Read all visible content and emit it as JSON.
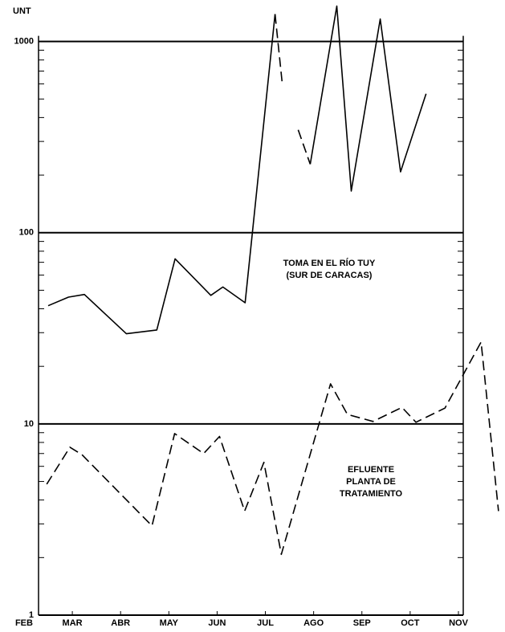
{
  "chart_data": {
    "type": "line",
    "y_label": "UNT",
    "log_scale": true,
    "grid": true,
    "xlim": [
      0.3,
      9.1
    ],
    "ylim": [
      1,
      1600
    ],
    "xticks": [
      {
        "value": 0,
        "label": "FEB"
      },
      {
        "value": 1,
        "label": "MAR"
      },
      {
        "value": 2,
        "label": "ABR"
      },
      {
        "value": 3,
        "label": "MAY"
      },
      {
        "value": 4,
        "label": "JUN"
      },
      {
        "value": 5,
        "label": "JUL"
      },
      {
        "value": 6,
        "label": "AGO"
      },
      {
        "value": 7,
        "label": "SEP"
      },
      {
        "value": 8,
        "label": "OCT"
      },
      {
        "value": 9,
        "label": "NOV"
      }
    ],
    "yticks": [
      1,
      10,
      100,
      1000
    ],
    "yminor": [
      2,
      3,
      4,
      5,
      6,
      7,
      8,
      9,
      20,
      30,
      40,
      50,
      60,
      70,
      80,
      90,
      200,
      300,
      400,
      500,
      600,
      700,
      800,
      900
    ],
    "annotations": [
      {
        "lines": [
          "TOMA EN EL RÍO TUY",
          "(SUR DE CARACAS)"
        ]
      },
      {
        "lines": [
          "EFLUENTE",
          "PLANTA DE",
          "TRATAMIENTO"
        ]
      }
    ],
    "series": [
      {
        "color": "#000000",
        "dashed": false,
        "x": [
          0.5,
          0.92,
          1.25,
          2.12,
          2.75,
          3.13,
          3.87,
          4.12,
          4.58,
          5.2,
          null,
          5.93,
          6.48,
          6.78,
          7.38,
          7.8,
          8.33
        ],
        "values": [
          41.5,
          46,
          47.5,
          29.6,
          31,
          73,
          47,
          52,
          43,
          1390,
          null,
          228,
          1530,
          165,
          1310,
          208,
          533
        ]
      },
      {
        "color": "#000000",
        "dashed": true,
        "x": [
          5.2,
          5.35,
          null,
          5.68,
          5.93
        ],
        "values": [
          1390,
          600,
          null,
          345,
          228
        ]
      },
      {
        "color": "#000000",
        "dashed": true,
        "x": [
          0.47,
          0.95,
          1.2,
          2.65,
          3.12,
          3.72,
          4.05,
          4.57,
          4.97,
          5.33,
          6.35,
          6.7,
          7.23,
          7.83,
          8.12,
          8.72,
          9.47,
          9.83
        ],
        "values": [
          4.84,
          7.55,
          6.9,
          2.93,
          8.9,
          7.0,
          8.6,
          3.5,
          6.3,
          2.08,
          16.2,
          11.2,
          10.3,
          12.2,
          10.2,
          12.1,
          26.8,
          3.5
        ]
      }
    ]
  }
}
